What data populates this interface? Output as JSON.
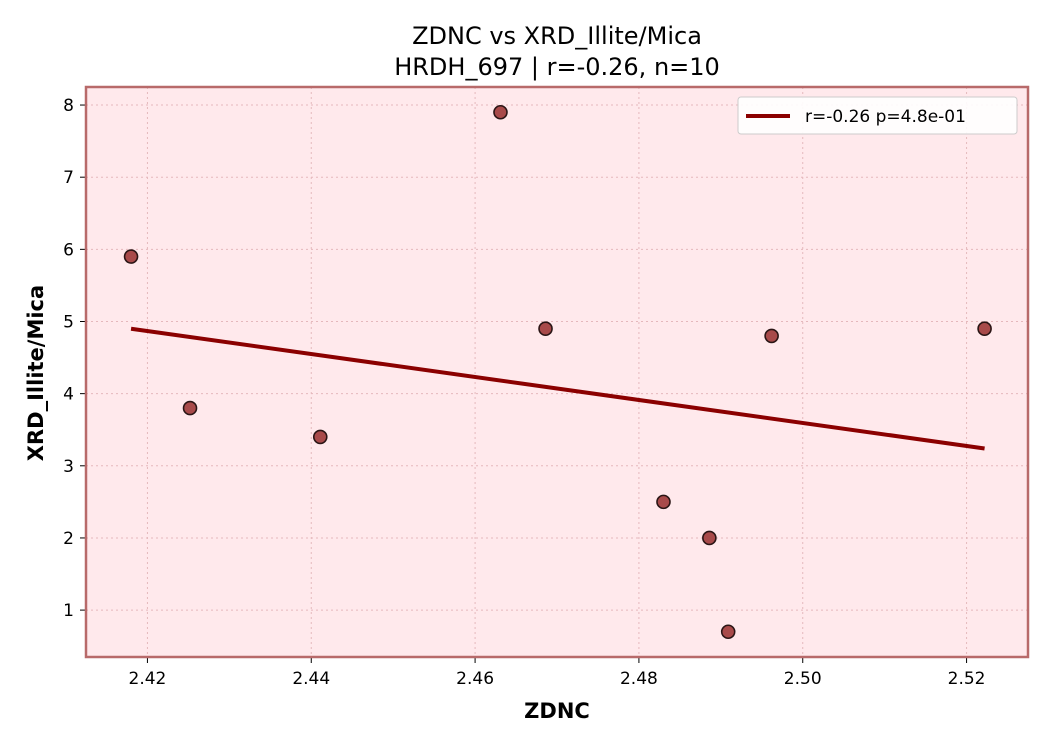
{
  "chart_data": {
    "type": "scatter",
    "title": "ZDNC vs XRD_Illite/Mica",
    "subtitle": "HRDH_697 | r=-0.26, n=10",
    "xlabel": "ZDNC",
    "ylabel": "XRD_Illite/Mica",
    "xlim": [
      2.4125,
      2.5275
    ],
    "ylim": [
      0.35,
      8.25
    ],
    "xticks": [
      2.42,
      2.44,
      2.46,
      2.48,
      2.5,
      2.52
    ],
    "xtick_labels": [
      "2.42",
      "2.44",
      "2.46",
      "2.48",
      "2.50",
      "2.52"
    ],
    "yticks": [
      1,
      2,
      3,
      4,
      5,
      6,
      7,
      8
    ],
    "ytick_labels": [
      "1",
      "2",
      "3",
      "4",
      "5",
      "6",
      "7",
      "8"
    ],
    "grid": true,
    "legend_position": "top-right",
    "points": [
      {
        "x": 2.418,
        "y": 5.9
      },
      {
        "x": 2.4252,
        "y": 3.8
      },
      {
        "x": 2.4411,
        "y": 3.4
      },
      {
        "x": 2.4631,
        "y": 7.9
      },
      {
        "x": 2.4686,
        "y": 4.9
      },
      {
        "x": 2.483,
        "y": 2.5
      },
      {
        "x": 2.4886,
        "y": 2.0
      },
      {
        "x": 2.4909,
        "y": 0.7
      },
      {
        "x": 2.4962,
        "y": 4.8
      },
      {
        "x": 2.5222,
        "y": 4.9
      }
    ],
    "fit_line": {
      "label": "r=-0.26  p=4.8e-01",
      "x": [
        2.418,
        2.5222
      ],
      "y": [
        4.9,
        3.24
      ]
    },
    "colors": {
      "plot_background": "#ffe9ec",
      "frame": "#b86a6a",
      "point_fill": "#a84a4a",
      "point_edge": "#2a1515",
      "fit_line": "#8b0000",
      "grid": "#e5b8bc"
    }
  }
}
